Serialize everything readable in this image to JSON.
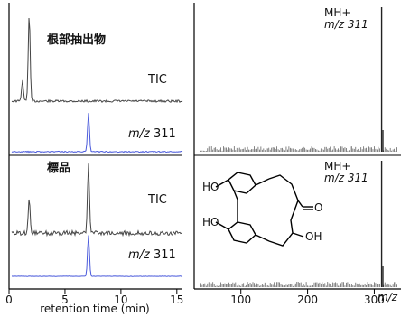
{
  "figure": {
    "left_header_top": "根部抽出物",
    "left_header_bottom": "標品",
    "tic_label": "TIC",
    "mz_label_italic": "m/z",
    "mz_value": "311",
    "right_top_label": "MH+",
    "right_bottom_label": "MH+",
    "right_mz_label": "m/z 311",
    "structure_labels": {
      "oh1": "HO",
      "oh2": "HO",
      "oh3": "OH",
      "o": "O"
    }
  },
  "chart_data": [
    {
      "type": "line",
      "xlabel": "retention time (min)",
      "xlim": [
        0,
        15.5
      ],
      "xticks": [
        0,
        5,
        10,
        15
      ],
      "tick_labels": [
        "0",
        "5",
        "10",
        "15"
      ],
      "series": [
        {
          "name": "TIC",
          "group": "根部抽出物",
          "color": "#444444",
          "peaks": [
            {
              "x": 1.8,
              "height": 0.95
            },
            {
              "x": 1.2,
              "height": 0.22
            }
          ]
        },
        {
          "name": "m/z 311",
          "group": "根部抽出物",
          "color": "#4a5adb",
          "peaks": [
            {
              "x": 7.1,
              "height": 0.85
            }
          ]
        },
        {
          "name": "TIC",
          "group": "標品",
          "color": "#444444",
          "peaks": [
            {
              "x": 1.8,
              "height": 0.45
            },
            {
              "x": 7.1,
              "height": 0.95
            }
          ]
        },
        {
          "name": "m/z 311",
          "group": "標品",
          "color": "#4a5adb",
          "peaks": [
            {
              "x": 7.1,
              "height": 0.95
            }
          ]
        }
      ]
    },
    {
      "type": "bar",
      "xlabel": "m/z",
      "xlim": [
        30,
        340
      ],
      "xticks": [
        100,
        200,
        300
      ],
      "tick_labels": [
        "100",
        "200",
        "300"
      ],
      "spectra": [
        {
          "label": "MH+",
          "base_peak": 311,
          "group": "根部抽出物"
        },
        {
          "label": "MH+",
          "base_peak": 311,
          "group": "標品"
        }
      ]
    }
  ]
}
